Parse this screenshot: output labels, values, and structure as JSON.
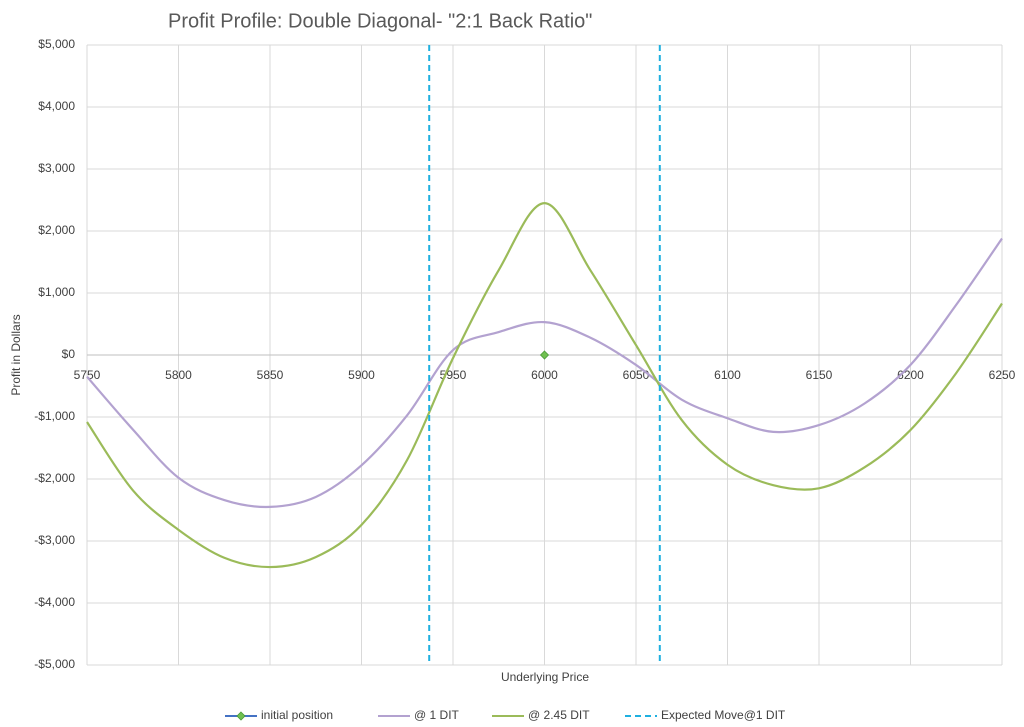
{
  "chart_data": {
    "type": "line",
    "title": "Profit Profile: Double Diagonal- \"2:1 Back Ratio\"",
    "x_label": "Underlying Price",
    "y_label": "Profit in Dollars",
    "x": [
      5750,
      5775,
      5800,
      5825,
      5850,
      5875,
      5900,
      5925,
      5950,
      5975,
      6000,
      6025,
      6050,
      6075,
      6100,
      6125,
      6150,
      6175,
      6200,
      6225,
      6250
    ],
    "series": [
      {
        "name": "initial position",
        "color": "#4472c4",
        "marker_color": "#70c050",
        "x": [
          6000
        ],
        "values": [
          0
        ]
      },
      {
        "name": "@ 1 DIT",
        "color": "#b3a2d0",
        "values": [
          -350,
          -1200,
          -1980,
          -2340,
          -2450,
          -2290,
          -1780,
          -970,
          80,
          370,
          530,
          280,
          -160,
          -720,
          -1020,
          -1240,
          -1130,
          -780,
          -160,
          810,
          1880
        ]
      },
      {
        "name": "@ 2.45 DIT",
        "color": "#9bbb59",
        "values": [
          -1080,
          -2180,
          -2820,
          -3270,
          -3420,
          -3260,
          -2740,
          -1690,
          -50,
          1370,
          2450,
          1370,
          160,
          -1050,
          -1770,
          -2100,
          -2150,
          -1810,
          -1210,
          -290,
          830
        ]
      },
      {
        "name": "Expected Move@1 DIT",
        "color": "#1fb0e0",
        "dashed": true,
        "x": [
          5937,
          6063
        ]
      }
    ],
    "xlim": [
      5750,
      6250
    ],
    "xticks": [
      5750,
      5800,
      5850,
      5900,
      5950,
      6000,
      6050,
      6100,
      6150,
      6200,
      6250
    ],
    "ylim": [
      -5000,
      5000
    ],
    "yticks": [
      {
        "value": -5000,
        "label": "-$5,000"
      },
      {
        "value": -4000,
        "label": "-$4,000"
      },
      {
        "value": -3000,
        "label": "-$3,000"
      },
      {
        "value": -2000,
        "label": "-$2,000"
      },
      {
        "value": -1000,
        "label": "-$1,000"
      },
      {
        "value": 0,
        "label": "$0"
      },
      {
        "value": 1000,
        "label": "$1,000"
      },
      {
        "value": 2000,
        "label": "$2,000"
      },
      {
        "value": 3000,
        "label": "$3,000"
      },
      {
        "value": 4000,
        "label": "$4,000"
      },
      {
        "value": 5000,
        "label": "$5,000"
      }
    ],
    "grid": true,
    "legend": "bottom"
  }
}
